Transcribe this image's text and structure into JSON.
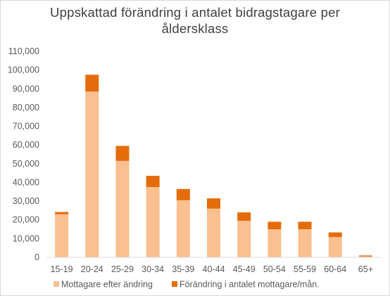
{
  "chart_data": {
    "type": "bar",
    "stacked": true,
    "title_lines": [
      "Uppskattad förändring  i antalet bidragstagare  per",
      "åldersklass"
    ],
    "categories": [
      "15-19",
      "20-24",
      "25-29",
      "30-34",
      "35-39",
      "40-44",
      "45-49",
      "50-54",
      "55-59",
      "60-64",
      "65+"
    ],
    "series": [
      {
        "name": "Mottagare efter ändring",
        "color": "#fac090",
        "values": [
          23000,
          88500,
          51500,
          37500,
          30500,
          26000,
          19500,
          15000,
          15000,
          10800,
          500
        ]
      },
      {
        "name": "Förändring i antalet mottagare/mån.",
        "color": "#e46c0a",
        "values": [
          1200,
          9000,
          8000,
          6000,
          6000,
          5500,
          4500,
          4000,
          4000,
          2500,
          500
        ]
      }
    ],
    "y_ticks": [
      "0",
      "10,000",
      "20,000",
      "30,000",
      "40,000",
      "50,000",
      "60,000",
      "70,000",
      "80,000",
      "90,000",
      "100,000",
      "110,000"
    ],
    "ylim": [
      0,
      110000
    ],
    "grid": false,
    "legend_position": "bottom"
  }
}
